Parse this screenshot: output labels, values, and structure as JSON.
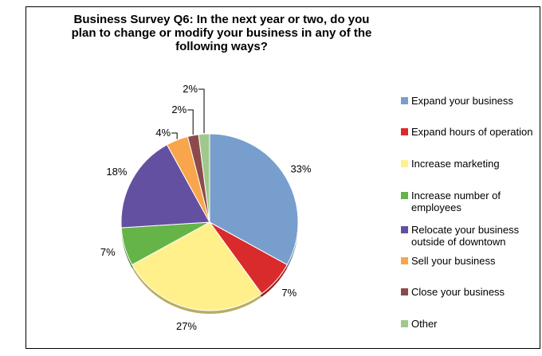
{
  "chart_data": {
    "type": "pie",
    "title_lines": [
      "Business Survey Q6: In the next year or two, do you",
      "plan to change or modify your business in any of the",
      "following ways?"
    ],
    "slices": [
      {
        "name_lines": [
          "Expand your business"
        ],
        "value": 33,
        "label": "33%",
        "color": "#779ECD"
      },
      {
        "name_lines": [
          "Expand hours of operation"
        ],
        "value": 7,
        "label": "7%",
        "color": "#D92B2B"
      },
      {
        "name_lines": [
          "Increase marketing"
        ],
        "value": 27,
        "label": "27%",
        "color": "#FFF08C"
      },
      {
        "name_lines": [
          "Increase number of",
          "employees"
        ],
        "value": 7,
        "label": "7%",
        "color": "#64B448"
      },
      {
        "name_lines": [
          "Relocate your business",
          "outside of downtown"
        ],
        "value": 18,
        "label": "18%",
        "color": "#6450A0"
      },
      {
        "name_lines": [
          "Sell your business"
        ],
        "value": 4,
        "label": "4%",
        "color": "#F8A54B"
      },
      {
        "name_lines": [
          "Close your business"
        ],
        "value": 2,
        "label": "2%",
        "color": "#8C4B4B"
      },
      {
        "name_lines": [
          "Other"
        ],
        "value": 2,
        "label": "2%",
        "color": "#A0C88C"
      }
    ],
    "legend_position": "right"
  }
}
